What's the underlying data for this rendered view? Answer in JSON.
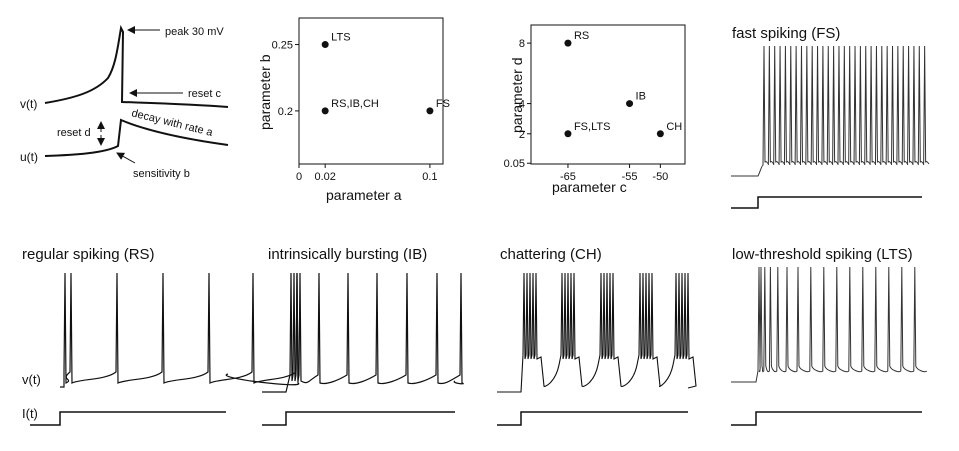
{
  "diagram": {
    "peak_label": "peak 30 mV",
    "reset_c_label": "reset  c",
    "v_label": "v(t)",
    "u_label": "u(t)",
    "reset_d_label": "reset  d",
    "decay_label": "decay with  rate  a",
    "sensitivity_label": "sensitivity  b"
  },
  "chart_data": [
    {
      "type": "scatter",
      "title": "",
      "xlabel": "parameter a",
      "ylabel": "parameter b",
      "xlim": [
        0,
        0.11
      ],
      "ylim": [
        0.16,
        0.27
      ],
      "xticks": [
        {
          "v": 0,
          "label": "0"
        },
        {
          "v": 0.02,
          "label": "0.02"
        },
        {
          "v": 0.1,
          "label": "0.1"
        }
      ],
      "yticks": [
        {
          "v": 0.2,
          "label": "0.2"
        },
        {
          "v": 0.25,
          "label": "0.25"
        }
      ],
      "points": [
        {
          "label": "LTS",
          "x": 0.02,
          "y": 0.25
        },
        {
          "label": "RS,IB,CH",
          "x": 0.02,
          "y": 0.2
        },
        {
          "label": "FS",
          "x": 0.1,
          "y": 0.2
        }
      ]
    },
    {
      "type": "scatter",
      "title": "",
      "xlabel": "parameter c",
      "ylabel": "parameter d",
      "xlim": [
        -71,
        -46
      ],
      "ylim": [
        0,
        9.2
      ],
      "xticks": [
        {
          "v": -65,
          "label": "-65"
        },
        {
          "v": -55,
          "label": "-55"
        },
        {
          "v": -50,
          "label": "-50"
        }
      ],
      "yticks": [
        {
          "v": 0.05,
          "label": "0.05"
        },
        {
          "v": 2,
          "label": "2"
        },
        {
          "v": 4,
          "label": "4"
        },
        {
          "v": 8,
          "label": "8"
        }
      ],
      "points": [
        {
          "label": "RS",
          "x": -65,
          "y": 8
        },
        {
          "label": "IB",
          "x": -55,
          "y": 4
        },
        {
          "label": "FS,LTS",
          "x": -65,
          "y": 2
        },
        {
          "label": "CH",
          "x": -50,
          "y": 2
        }
      ]
    },
    {
      "type": "line",
      "title": "fast spiking (FS)",
      "pattern": "tonic",
      "spike_count": 31,
      "v_label": "",
      "i_label": ""
    },
    {
      "type": "line",
      "title": "regular spiking (RS)",
      "pattern": "adapting",
      "spike_count": 7,
      "v_label": "v(t)",
      "i_label": "I(t)"
    },
    {
      "type": "line",
      "title": "intrinsically bursting (IB)",
      "pattern": "burst-then-tonic",
      "spike_count": 11,
      "v_label": "",
      "i_label": ""
    },
    {
      "type": "line",
      "title": "chattering (CH)",
      "pattern": "bursting",
      "burst_count": 5,
      "spikes_per_burst": 5,
      "v_label": "",
      "i_label": ""
    },
    {
      "type": "line",
      "title": "low-threshold spiking (LTS)",
      "pattern": "tonic-adapting",
      "spike_count": 23,
      "v_label": "",
      "i_label": ""
    }
  ]
}
